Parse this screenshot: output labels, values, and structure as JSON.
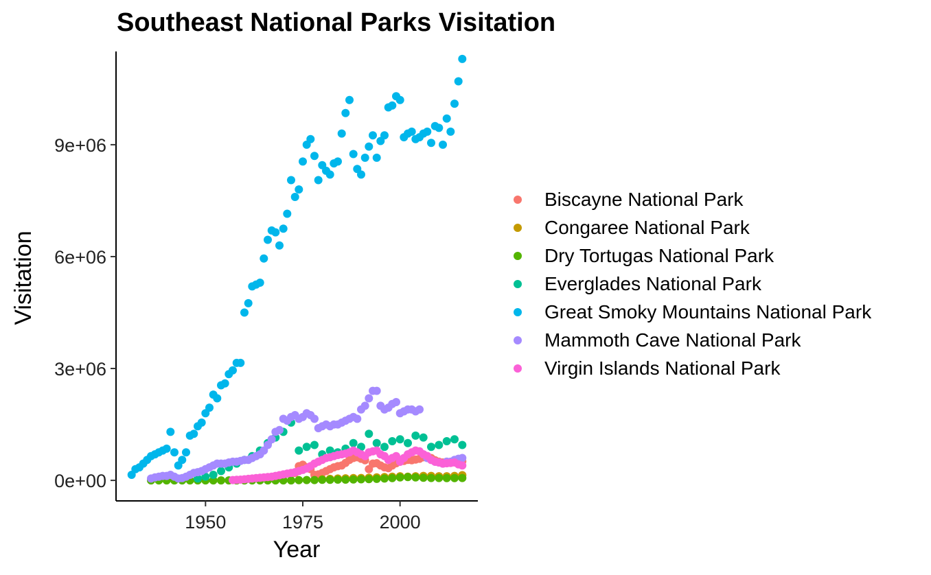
{
  "chart_data": {
    "type": "scatter",
    "title": "Southeast National Parks Visitation",
    "xlabel": "Year",
    "ylabel": "Visitation",
    "xlim": [
      1927,
      2020
    ],
    "ylim": [
      -550000,
      11500000
    ],
    "x_ticks": [
      1950,
      1975,
      2000
    ],
    "y_ticks": [
      0,
      3000000,
      6000000,
      9000000
    ],
    "y_tick_labels": [
      "0e+00",
      "3e+06",
      "6e+06",
      "9e+06"
    ],
    "grid": false,
    "legend_position": "right",
    "series": [
      {
        "name": "Biscayne National Park",
        "color": "#F8766D",
        "x": [
          1973,
          1974,
          1975,
          1976,
          1977,
          1978,
          1979,
          1980,
          1981,
          1982,
          1983,
          1984,
          1985,
          1986,
          1987,
          1988,
          1989,
          1990,
          1991,
          1992,
          1993,
          1994,
          1995,
          1996,
          1997,
          1998,
          1999,
          2000,
          2001,
          2002,
          2003,
          2004,
          2005,
          2006,
          2007,
          2008,
          2009,
          2010,
          2011,
          2012,
          2013,
          2014,
          2015,
          2016
        ],
        "y": [
          200000,
          380000,
          420000,
          350000,
          300000,
          150000,
          160000,
          200000,
          250000,
          300000,
          350000,
          380000,
          400000,
          470000,
          550000,
          600000,
          620000,
          580000,
          540000,
          300000,
          450000,
          460000,
          400000,
          350000,
          330000,
          400000,
          460000,
          500000,
          520000,
          550000,
          540000,
          560000,
          580000,
          620000,
          650000,
          600000,
          540000,
          500000,
          480000,
          500000,
          470000,
          490000,
          500000,
          510000
        ]
      },
      {
        "name": "Congaree National Park",
        "color": "#C49A00",
        "x": [
          1980,
          1982,
          1984,
          1986,
          1988,
          1990,
          1992,
          1994,
          1996,
          1998,
          2000,
          2002,
          2004,
          2006,
          2008,
          2010,
          2012,
          2014,
          2016
        ],
        "y": [
          30000,
          40000,
          50000,
          55000,
          60000,
          65000,
          70000,
          80000,
          90000,
          100000,
          110000,
          100000,
          110000,
          120000,
          120000,
          110000,
          110000,
          120000,
          140000
        ]
      },
      {
        "name": "Dry Tortugas National Park",
        "color": "#53B400",
        "x": [
          1936,
          1938,
          1940,
          1942,
          1944,
          1946,
          1948,
          1950,
          1952,
          1954,
          1956,
          1958,
          1960,
          1962,
          1964,
          1966,
          1968,
          1970,
          1972,
          1974,
          1976,
          1978,
          1980,
          1982,
          1984,
          1986,
          1988,
          1990,
          1992,
          1994,
          1996,
          1998,
          2000,
          2002,
          2004,
          2006,
          2008,
          2010,
          2012,
          2014,
          2016
        ],
        "y": [
          0,
          0,
          0,
          0,
          0,
          0,
          0,
          0,
          0,
          0,
          0,
          0,
          0,
          0,
          0,
          0,
          0,
          0,
          0,
          5000,
          10000,
          10000,
          15000,
          15000,
          20000,
          20000,
          25000,
          30000,
          35000,
          40000,
          50000,
          60000,
          80000,
          90000,
          80000,
          70000,
          65000,
          65000,
          60000,
          60000,
          65000
        ]
      },
      {
        "name": "Everglades National Park",
        "color": "#00C094",
        "x": [
          1948,
          1950,
          1952,
          1954,
          1956,
          1958,
          1960,
          1962,
          1964,
          1966,
          1968,
          1970,
          1972,
          1974,
          1976,
          1978,
          1980,
          1982,
          1984,
          1986,
          1988,
          1990,
          1992,
          1994,
          1996,
          1998,
          2000,
          2002,
          2004,
          2006,
          2008,
          2010,
          2012,
          2014,
          2016
        ],
        "y": [
          50000,
          100000,
          150000,
          250000,
          350000,
          450000,
          550000,
          650000,
          800000,
          1000000,
          1150000,
          1300000,
          1550000,
          800000,
          900000,
          950000,
          700000,
          800000,
          750000,
          850000,
          1000000,
          900000,
          1250000,
          1000000,
          900000,
          1050000,
          1100000,
          1000000,
          1200000,
          1150000,
          900000,
          950000,
          1050000,
          1100000,
          950000
        ]
      },
      {
        "name": "Great Smoky Mountains National Park",
        "color": "#00B6EB",
        "x": [
          1931,
          1932,
          1933,
          1934,
          1935,
          1936,
          1937,
          1938,
          1939,
          1940,
          1941,
          1942,
          1943,
          1944,
          1945,
          1946,
          1947,
          1948,
          1949,
          1950,
          1951,
          1952,
          1953,
          1954,
          1955,
          1956,
          1957,
          1958,
          1959,
          1960,
          1961,
          1962,
          1963,
          1964,
          1965,
          1966,
          1967,
          1968,
          1969,
          1970,
          1971,
          1972,
          1973,
          1974,
          1975,
          1976,
          1977,
          1978,
          1979,
          1980,
          1981,
          1982,
          1983,
          1984,
          1985,
          1986,
          1987,
          1988,
          1989,
          1990,
          1991,
          1992,
          1993,
          1994,
          1995,
          1996,
          1997,
          1998,
          1999,
          2000,
          2001,
          2002,
          2003,
          2004,
          2005,
          2006,
          2007,
          2008,
          2009,
          2010,
          2011,
          2012,
          2013,
          2014,
          2015,
          2016
        ],
        "y": [
          150000,
          300000,
          350000,
          450000,
          550000,
          650000,
          700000,
          750000,
          800000,
          850000,
          1300000,
          750000,
          400000,
          550000,
          750000,
          1200000,
          1250000,
          1450000,
          1550000,
          1800000,
          1950000,
          2300000,
          2200000,
          2550000,
          2600000,
          2850000,
          2950000,
          3150000,
          3150000,
          4500000,
          4750000,
          5200000,
          5250000,
          5300000,
          5950000,
          6450000,
          6700000,
          6650000,
          6300000,
          6750000,
          7150000,
          8050000,
          7600000,
          7800000,
          8550000,
          9000000,
          9150000,
          8700000,
          8050000,
          8450000,
          8300000,
          8200000,
          8500000,
          8550000,
          9300000,
          9850000,
          10200000,
          8750000,
          8350000,
          8200000,
          8650000,
          8950000,
          9250000,
          8650000,
          9100000,
          9250000,
          10000000,
          10050000,
          10300000,
          10200000,
          9200000,
          9300000,
          9350000,
          9150000,
          9200000,
          9300000,
          9350000,
          9050000,
          9500000,
          9450000,
          9000000,
          9700000,
          9350000,
          10100000,
          10700000,
          11300000
        ]
      },
      {
        "name": "Mammoth Cave National Park",
        "color": "#A58AFF",
        "x": [
          1936,
          1937,
          1938,
          1939,
          1940,
          1941,
          1942,
          1943,
          1944,
          1945,
          1946,
          1947,
          1948,
          1949,
          1950,
          1951,
          1952,
          1953,
          1954,
          1955,
          1956,
          1957,
          1958,
          1959,
          1960,
          1961,
          1962,
          1963,
          1964,
          1965,
          1966,
          1967,
          1968,
          1969,
          1970,
          1971,
          1972,
          1973,
          1974,
          1975,
          1976,
          1977,
          1978,
          1979,
          1980,
          1981,
          1982,
          1983,
          1984,
          1985,
          1986,
          1987,
          1988,
          1989,
          1990,
          1991,
          1992,
          1993,
          1994,
          1995,
          1996,
          1997,
          1998,
          1999,
          2000,
          2001,
          2002,
          2003,
          2004,
          2005,
          2006,
          2007,
          2008,
          2009,
          2010,
          2011,
          2012,
          2013,
          2014,
          2015,
          2016
        ],
        "y": [
          50000,
          80000,
          100000,
          120000,
          120000,
          150000,
          100000,
          50000,
          60000,
          100000,
          150000,
          200000,
          220000,
          250000,
          300000,
          350000,
          400000,
          450000,
          450000,
          450000,
          480000,
          500000,
          500000,
          520000,
          550000,
          550000,
          600000,
          650000,
          700000,
          800000,
          950000,
          1100000,
          1300000,
          1350000,
          1650000,
          1600000,
          1700000,
          1750000,
          1650000,
          1700000,
          1800000,
          1750000,
          1650000,
          1400000,
          1450000,
          1500000,
          1450000,
          1500000,
          1500000,
          1550000,
          1600000,
          1650000,
          1700000,
          1650000,
          1900000,
          2000000,
          2200000,
          2400000,
          2400000,
          2000000,
          1900000,
          1950000,
          2050000,
          2100000,
          1800000,
          1850000,
          1900000,
          1900000,
          1850000,
          1900000,
          700000,
          600000,
          550000,
          500000,
          480000,
          450000,
          500000,
          500000,
          550000,
          580000,
          600000
        ]
      },
      {
        "name": "Virgin Islands National Park",
        "color": "#FB61D7",
        "x": [
          1957,
          1958,
          1959,
          1960,
          1961,
          1962,
          1963,
          1964,
          1965,
          1966,
          1967,
          1968,
          1969,
          1970,
          1971,
          1972,
          1973,
          1974,
          1975,
          1976,
          1977,
          1978,
          1979,
          1980,
          1981,
          1982,
          1983,
          1984,
          1985,
          1986,
          1987,
          1988,
          1989,
          1990,
          1991,
          1992,
          1993,
          1994,
          1995,
          1996,
          1997,
          1998,
          1999,
          2000,
          2001,
          2002,
          2003,
          2004,
          2005,
          2006,
          2007,
          2008,
          2009,
          2010,
          2011,
          2012,
          2013,
          2014,
          2015,
          2016
        ],
        "y": [
          10000,
          15000,
          20000,
          30000,
          40000,
          50000,
          60000,
          70000,
          80000,
          90000,
          100000,
          120000,
          140000,
          160000,
          180000,
          200000,
          220000,
          250000,
          280000,
          320000,
          380000,
          450000,
          500000,
          550000,
          600000,
          620000,
          650000,
          680000,
          700000,
          720000,
          750000,
          800000,
          750000,
          700000,
          650000,
          750000,
          780000,
          800000,
          700000,
          650000,
          550000,
          600000,
          650000,
          500000,
          600000,
          700000,
          750000,
          800000,
          780000,
          700000,
          650000,
          550000,
          500000,
          480000,
          450000,
          460000,
          470000,
          480000,
          430000,
          400000
        ]
      }
    ]
  }
}
